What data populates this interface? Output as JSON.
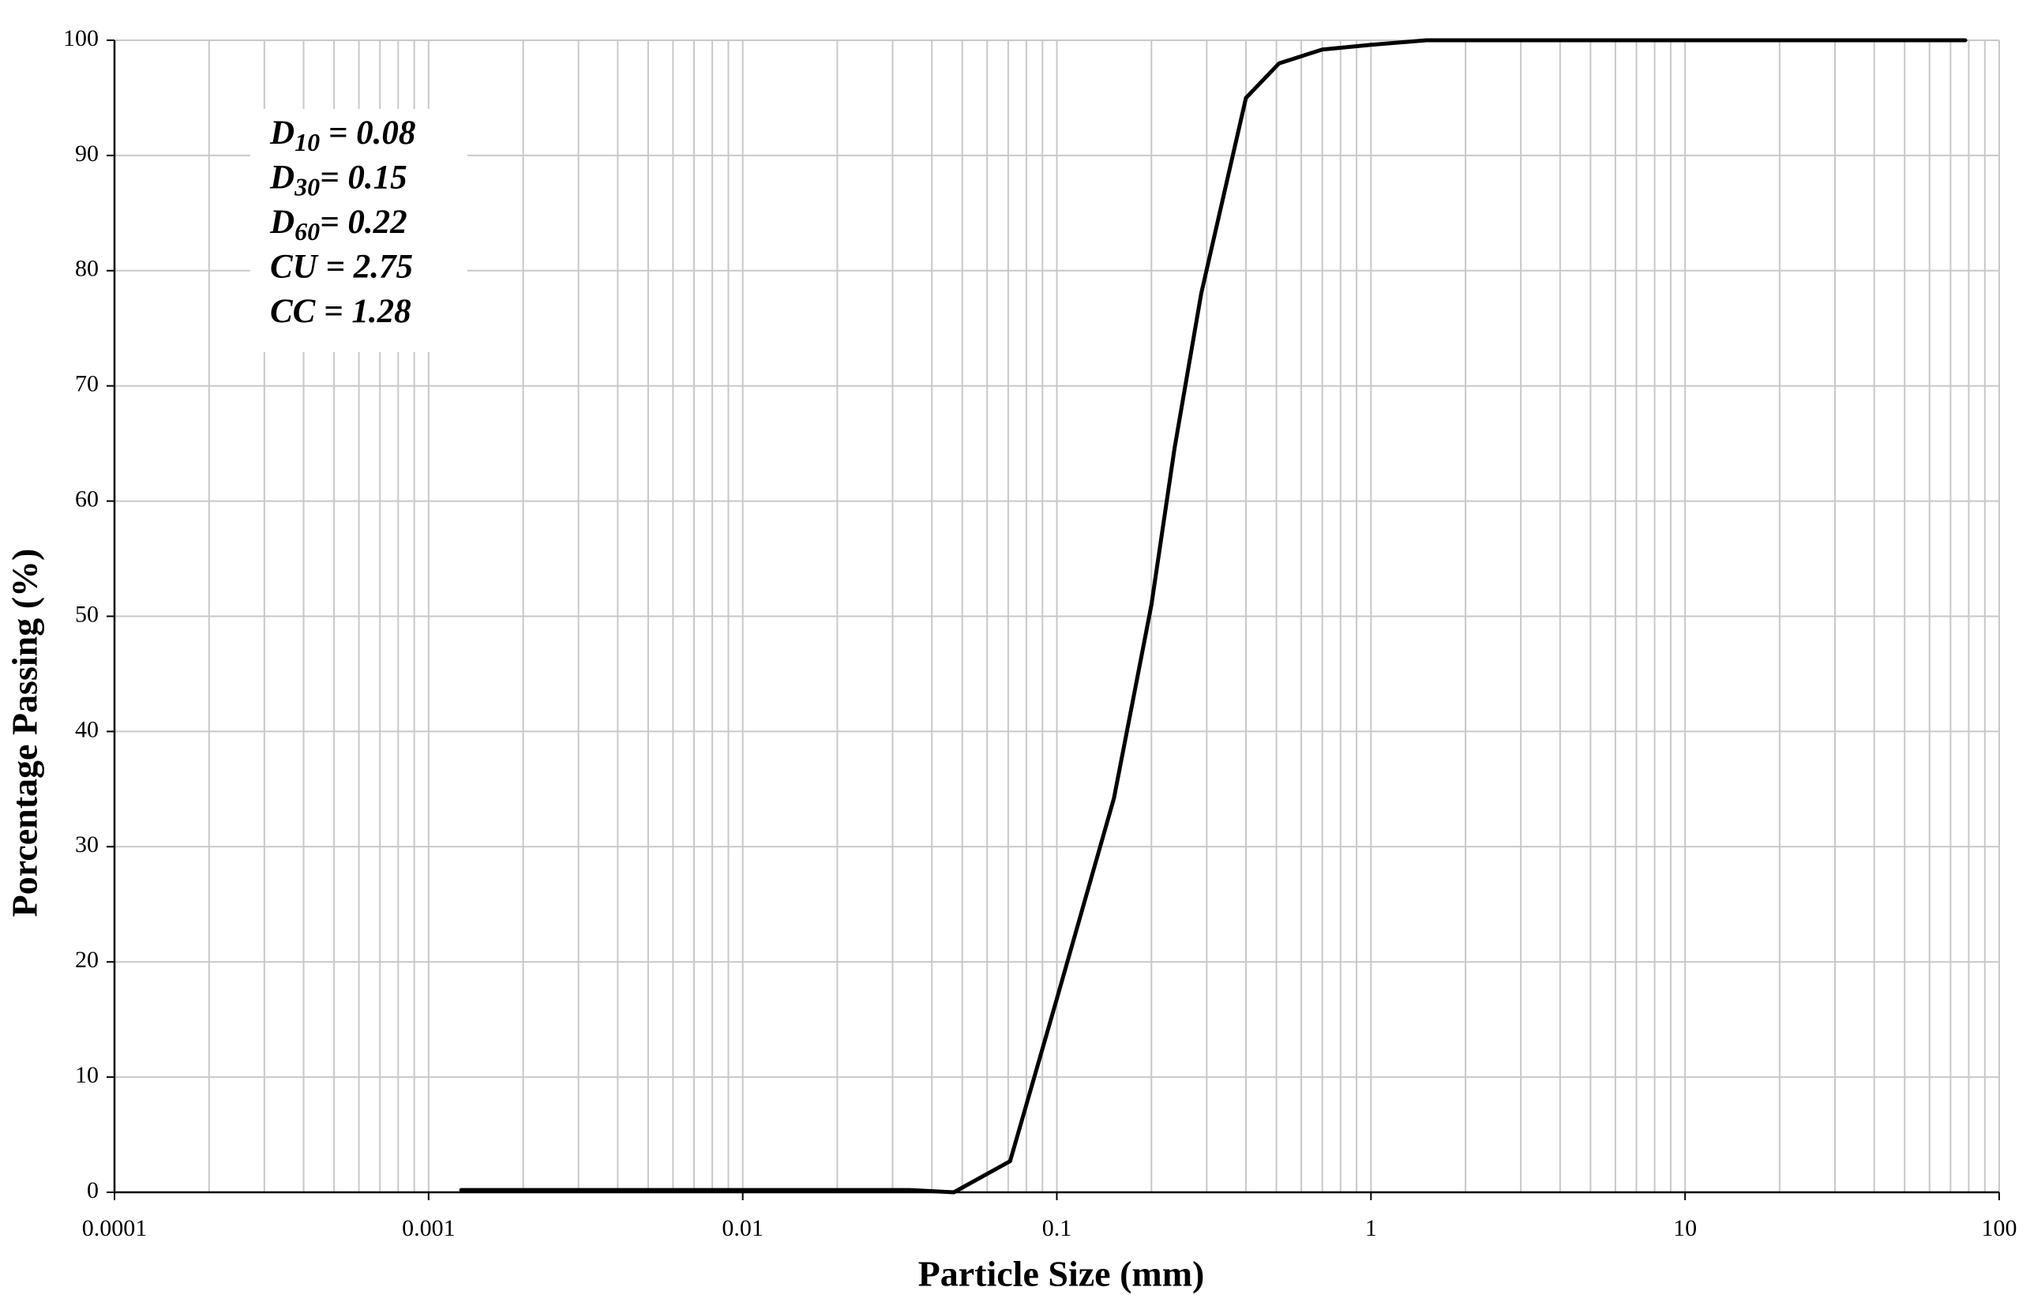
{
  "chart_data": {
    "type": "line",
    "xlabel": "Particle Size (mm)",
    "ylabel": "Porcentage Passing (%)",
    "xscale": "log",
    "x": [
      0.00127,
      0.034,
      0.047,
      0.071,
      0.1,
      0.152,
      0.2,
      0.237,
      0.288,
      0.4,
      0.51,
      0.7,
      1,
      1.5,
      78
    ],
    "values": [
      0.2,
      0.2,
      0,
      2.7,
      16.8,
      34.2,
      51,
      64.6,
      78,
      95,
      98,
      99.2,
      99.6,
      100,
      100
    ],
    "color": "#000000",
    "xlim": [
      0.0001,
      100
    ],
    "xticks": [
      0.0001,
      0.001,
      0.01,
      0.1,
      1,
      10,
      100
    ],
    "ylim": [
      0,
      100
    ],
    "yticks": [
      0,
      10,
      20,
      30,
      40,
      50,
      60,
      70,
      80,
      90,
      100
    ],
    "grid": true,
    "annotations": [
      {
        "base": "D",
        "sub": "10",
        "text": " = 0.08"
      },
      {
        "base": "D",
        "sub": "30",
        "text": "= 0.15"
      },
      {
        "base": "D",
        "sub": "60",
        "text": "= 0.22"
      },
      {
        "text": "CU = 2.75"
      },
      {
        "text": "CC = 1.28"
      }
    ]
  }
}
